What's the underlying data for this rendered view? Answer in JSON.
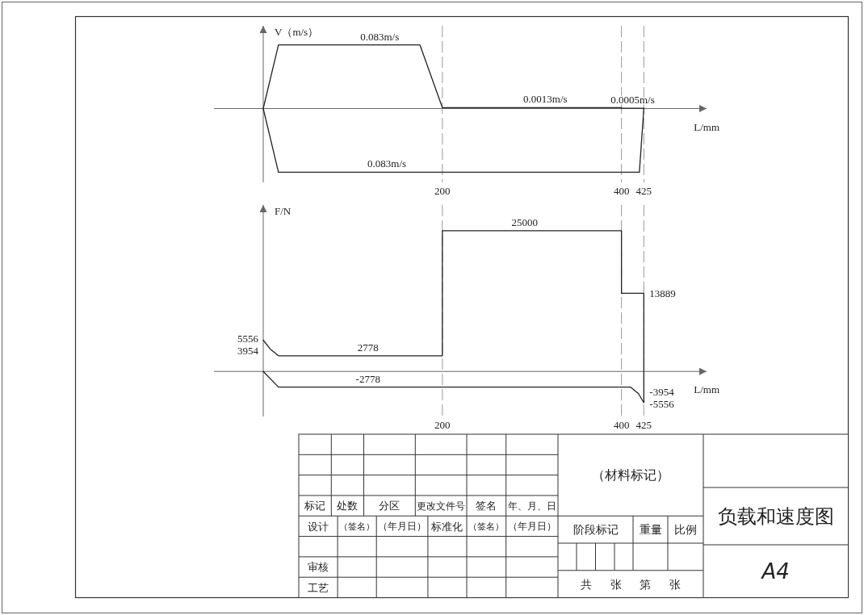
{
  "chart_data": [
    {
      "type": "line",
      "xlabel": "L/mm",
      "ylabel": "V（m/s）",
      "xlim": [
        -55,
        495
      ],
      "xticks": [
        200,
        400,
        425
      ],
      "tick_labels": "x",
      "series": [
        {
          "color": "#222222",
          "x": [
            0,
            17,
            130,
            175,
            200,
            315,
            400,
            400,
            412.5,
            425
          ],
          "values": [
            0,
            0.083,
            0.083,
            0.083,
            0.0013,
            0.0013,
            0.0013,
            0.0005,
            0.0005,
            0.0005
          ],
          "value_labels": [
            null,
            null,
            "0.083m/s",
            null,
            null,
            "0.0013m/s",
            null,
            null,
            "0.0005m/s",
            null
          ]
        },
        {
          "color": "#222222",
          "x": [
            425,
            420,
            138,
            17,
            0
          ],
          "values": [
            0.0005,
            -0.083,
            -0.083,
            -0.083,
            0
          ]
        }
      ],
      "ref_lines": [
        {
          "axis": "x",
          "value": 200,
          "line_style": "dashed",
          "color": "#999999"
        },
        {
          "axis": "x",
          "value": 400,
          "line_style": "dashed",
          "color": "#999999"
        },
        {
          "axis": "x",
          "value": 425,
          "line_style": "dashed",
          "color": "#999999"
        }
      ],
      "annotations": [
        {
          "text": "0.083m/s",
          "x": 138,
          "y": -0.083
        }
      ]
    },
    {
      "type": "line",
      "xlabel": "L/mm",
      "ylabel": "F/N",
      "xlim": [
        -55,
        495
      ],
      "xticks": [
        200,
        400,
        425
      ],
      "tick_labels": "x",
      "series": [
        {
          "color": "#222222",
          "x": [
            0,
            8,
            17,
            117,
            200,
            200,
            292,
            400,
            400,
            425,
            425,
            419,
            410,
            117,
            17,
            0
          ],
          "values": [
            5556,
            3954,
            2778,
            2778,
            2778,
            25000,
            25000,
            25000,
            13889,
            13889,
            -5556,
            -3954,
            -2778,
            -2778,
            -2778,
            0
          ],
          "value_labels": [
            "5556",
            "3954",
            null,
            "2778",
            null,
            null,
            "25000",
            null,
            null,
            "13889",
            "-5556",
            "-3954",
            null,
            "-2778",
            null,
            null
          ]
        }
      ],
      "ref_lines": [
        {
          "axis": "x",
          "value": 200,
          "line_style": "dashed",
          "color": "#999999"
        },
        {
          "axis": "x",
          "value": 400,
          "line_style": "dashed",
          "color": "#999999"
        },
        {
          "axis": "x",
          "value": 425,
          "line_style": "dashed",
          "color": "#999999"
        }
      ]
    },
    {
      "type": "other",
      "title": "负载和速度图",
      "annotations": [
        "标记",
        "处数",
        "分区",
        "更改文件号",
        "签名",
        "年、月、日",
        "设计",
        "（签名）",
        "（年月日）",
        "标准化",
        "（签名）",
        "（年月日）",
        "审核",
        "工艺",
        "（材料标记）",
        "阶段标记",
        "重量",
        "比例",
        "共 张 第 张",
        "A4"
      ]
    }
  ]
}
